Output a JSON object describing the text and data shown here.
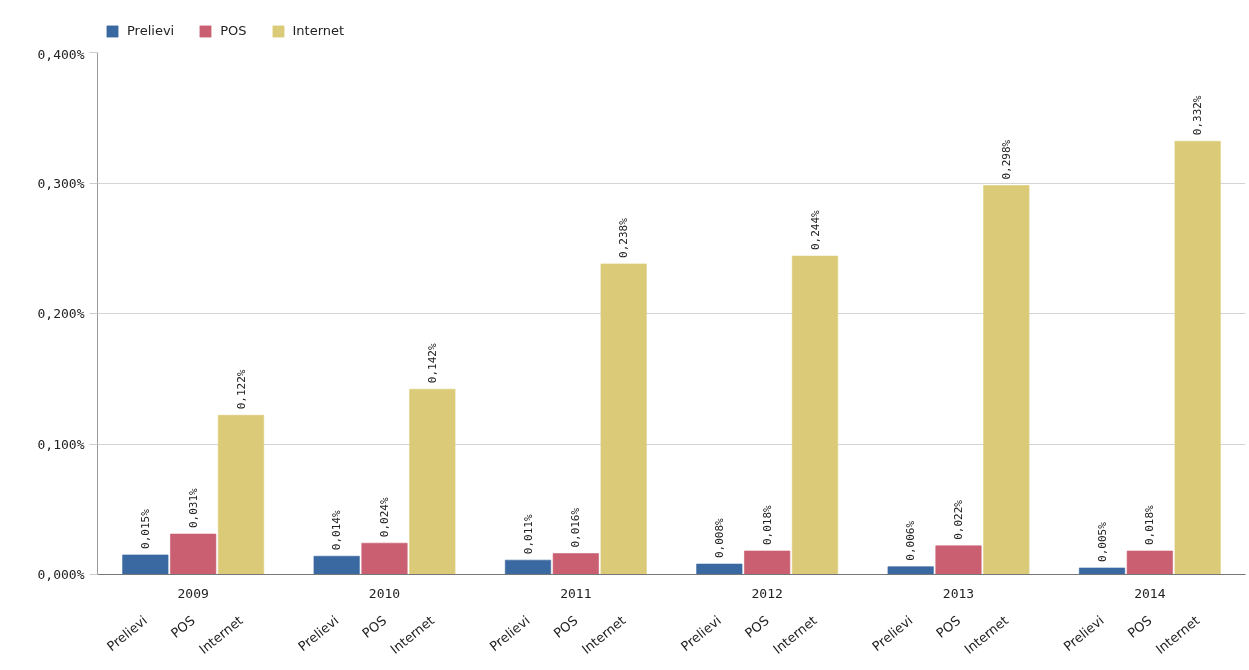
{
  "chart_data": {
    "type": "bar",
    "categories": [
      "2009",
      "2010",
      "2011",
      "2012",
      "2013",
      "2014"
    ],
    "series": [
      {
        "name": "Prelievi",
        "color": "#3a68a0",
        "values": [
          0.015,
          0.014,
          0.011,
          0.008,
          0.006,
          0.005
        ],
        "value_labels": [
          "0,015%",
          "0,014%",
          "0,011%",
          "0,008%",
          "0,006%",
          "0,005%"
        ]
      },
      {
        "name": "POS",
        "color": "#c95f70",
        "values": [
          0.031,
          0.024,
          0.016,
          0.018,
          0.022,
          0.018
        ],
        "value_labels": [
          "0,031%",
          "0,024%",
          "0,016%",
          "0,018%",
          "0,022%",
          "0,018%"
        ]
      },
      {
        "name": "Internet",
        "color": "#dbcb78",
        "values": [
          0.122,
          0.142,
          0.238,
          0.244,
          0.298,
          0.332
        ],
        "value_labels": [
          "0,122%",
          "0,142%",
          "0,238%",
          "0,244%",
          "0,298%",
          "0,332%"
        ]
      }
    ],
    "ylim": [
      0,
      0.4
    ],
    "yticks": [
      {
        "value": 0,
        "label": "0,000%"
      },
      {
        "value": 0.1,
        "label": "0,100%"
      },
      {
        "value": 0.2,
        "label": "0,200%"
      },
      {
        "value": 0.3,
        "label": "0,300%"
      },
      {
        "value": 0.4,
        "label": "0,400%"
      }
    ],
    "grid": "y",
    "legend": "top left"
  }
}
